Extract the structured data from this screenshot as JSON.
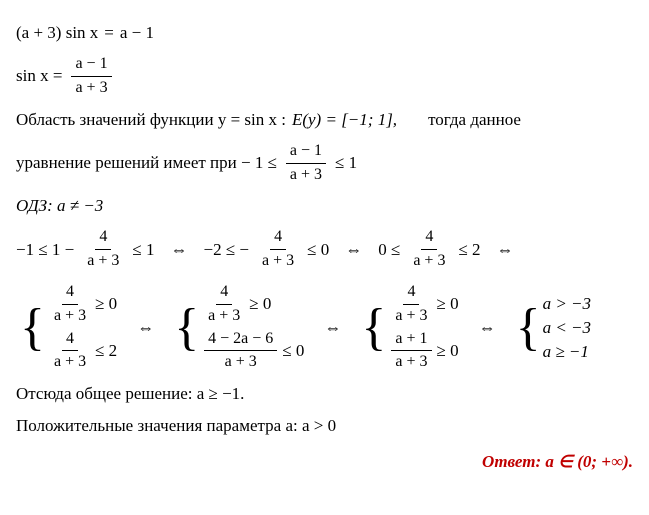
{
  "eq1": {
    "lhs": "(a + 3) sin x",
    "rhs": "a − 1"
  },
  "eq2": {
    "lhs": "sin x =",
    "frac": {
      "num": "a − 1",
      "den": "a + 3"
    }
  },
  "rangeText": {
    "p1": "Область значений функции y = sin x :",
    "p2": "E(y) = [−1; 1],",
    "p3": "тогда данное"
  },
  "condText": {
    "p1": "уравнение решений имеет при − 1 ≤",
    "frac": {
      "num": "a − 1",
      "den": "a + 3"
    },
    "p2": "≤ 1"
  },
  "odz": "ОДЗ:  a ≠ −3",
  "chain1": {
    "s1a": "−1 ≤ 1 −",
    "s1f": {
      "num": "4",
      "den": "a + 3"
    },
    "s1b": "≤ 1",
    "s2a": "−2 ≤ −",
    "s2f": {
      "num": "4",
      "den": "a + 3"
    },
    "s2b": "≤ 0",
    "s3a": "0 ≤",
    "s3f": {
      "num": "4",
      "den": "a + 3"
    },
    "s3b": "≤ 2"
  },
  "arr": "⇔",
  "sys1": {
    "r1": {
      "f": {
        "num": "4",
        "den": "a + 3"
      },
      "op": "≥ 0"
    },
    "r2": {
      "f": {
        "num": "4",
        "den": "a + 3"
      },
      "op": "≤ 2"
    }
  },
  "sys2": {
    "r1": {
      "f": {
        "num": "4",
        "den": "a + 3"
      },
      "op": "≥ 0"
    },
    "r2": {
      "f": {
        "num": "4 − 2a − 6",
        "den": "a + 3"
      },
      "op": "≤ 0"
    }
  },
  "sys3": {
    "r1": {
      "f": {
        "num": "4",
        "den": "a + 3"
      },
      "op": "≥ 0"
    },
    "r2": {
      "f": {
        "num": "a + 1",
        "den": "a + 3"
      },
      "op": "≥ 0"
    }
  },
  "sys4": {
    "r1": "a > −3",
    "r2": "a < −3",
    "r3": "a ≥ −1"
  },
  "concl1": "Отсюда общее решение:  a ≥ −1.",
  "concl2": "Положительные значения параметра a:  a > 0",
  "answer": {
    "label": "Ответ:  ",
    "val": "a ∈ (0; +∞)."
  },
  "colors": {
    "answer": "#c00000",
    "text": "#000000",
    "bg": "#ffffff"
  }
}
